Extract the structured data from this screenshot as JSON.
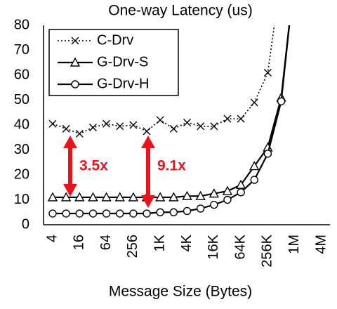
{
  "chart_data": {
    "type": "line",
    "title": "One-way Latency (us)",
    "x_label": "Message Size (Bytes)",
    "categories": [
      "4",
      null,
      "16",
      null,
      "64",
      null,
      "256",
      null,
      "1K",
      null,
      "4K",
      null,
      "16K",
      null,
      "64K",
      null,
      "256K",
      null,
      "1M",
      null,
      "4M"
    ],
    "ylim": [
      0,
      80
    ],
    "yticks": [
      0,
      10,
      20,
      30,
      40,
      50,
      60,
      70,
      80
    ],
    "legend": "upper left",
    "series": [
      {
        "name": "C-Drv",
        "color": "#000000",
        "marker": "x",
        "line_style": "dotted",
        "values": [
          40.5,
          38.5,
          36.5,
          39,
          40.5,
          39.5,
          40,
          37.5,
          42,
          38.5,
          41,
          39.5,
          39.5,
          42.5,
          42.5,
          49,
          61,
          100,
          null,
          null,
          null
        ]
      },
      {
        "name": "G-Drv-S",
        "color": "#000000",
        "marker": "triangle",
        "line_style": "solid",
        "values": [
          11,
          11,
          11,
          11,
          11,
          11,
          11,
          11,
          11,
          11,
          11.5,
          11.5,
          12.5,
          13.5,
          16,
          23.5,
          31,
          51,
          100,
          null,
          null
        ]
      },
      {
        "name": "G-Drv-H",
        "color": "#000000",
        "marker": "circle",
        "line_style": "solid",
        "values": [
          4.5,
          4.5,
          4.5,
          4.5,
          4.5,
          4.5,
          4.5,
          4.5,
          5,
          5,
          5.5,
          6.5,
          8,
          10,
          13,
          18,
          28.5,
          49.5,
          100,
          null,
          null
        ]
      }
    ],
    "annotations": [
      {
        "text": "3.5x",
        "color": "#e8141b"
      },
      {
        "text": "9.1x",
        "color": "#e8141b"
      }
    ]
  }
}
